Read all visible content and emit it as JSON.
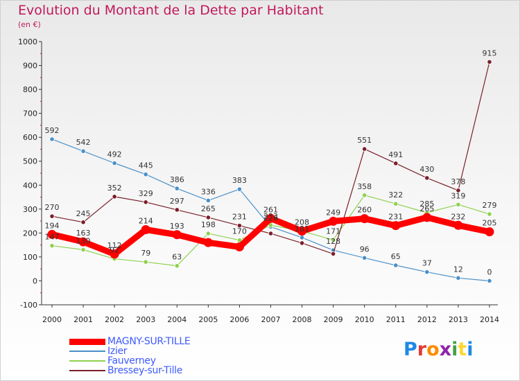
{
  "title": "Evolution du Montant de la Dette par Habitant",
  "unit": "(en €)",
  "logo": {
    "text": "Proxiti",
    "colors": [
      "#1e88e5",
      "#e53935",
      "#fb8c00",
      "#8e24aa",
      "#43a047",
      "#fdd835",
      "#1e88e5"
    ]
  },
  "chart_data": {
    "type": "line",
    "x": [
      "2000",
      "2001",
      "2002",
      "2003",
      "2004",
      "2005",
      "2006",
      "2007",
      "2008",
      "2009",
      "2010",
      "2011",
      "2012",
      "2013",
      "2014"
    ],
    "ylim": [
      -100,
      1000
    ],
    "yticks": [
      "-100",
      "0",
      "100",
      "200",
      "300",
      "400",
      "500",
      "600",
      "700",
      "800",
      "900",
      "1000"
    ],
    "grid": false,
    "legend_position": "bottom-left",
    "series": [
      {
        "name": "MAGNY-SUR-TILLE",
        "color": "#ff0000",
        "width": 9,
        "values": [
          194,
          163,
          112,
          214,
          193,
          160,
          142,
          261,
          208,
          249,
          260,
          231,
          265,
          232,
          205
        ],
        "labels": [
          "194",
          "163",
          "112",
          "214",
          "193",
          "",
          "",
          "261",
          "208",
          "249",
          "260",
          "231",
          "265",
          "232",
          "205"
        ]
      },
      {
        "name": "Izier",
        "color": "#4a90c8",
        "width": 1.2,
        "values": [
          592,
          542,
          492,
          445,
          386,
          336,
          383,
          226,
          181,
          128,
          96,
          65,
          37,
          12,
          0
        ],
        "labels": [
          "592",
          "542",
          "492",
          "445",
          "386",
          "336",
          "383",
          "226",
          "181",
          "128",
          "96",
          "65",
          "37",
          "12",
          "0"
        ]
      },
      {
        "name": "Fauverney",
        "color": "#8fd14f",
        "width": 1.2,
        "values": [
          147,
          130,
          92,
          79,
          63,
          198,
          170,
          233,
          208,
          171,
          358,
          322,
          285,
          319,
          279
        ],
        "labels": [
          "147",
          "130",
          "92",
          "79",
          "63",
          "198",
          "170",
          "233",
          "",
          "171",
          "358",
          "322",
          "285",
          "319",
          "279"
        ]
      },
      {
        "name": "Bressey-sur-Tille",
        "color": "#7b1f2b",
        "width": 1.2,
        "values": [
          270,
          245,
          352,
          329,
          297,
          265,
          231,
          198,
          158,
          113,
          551,
          491,
          430,
          378,
          915
        ],
        "labels": [
          "270",
          "245",
          "352",
          "329",
          "297",
          "265",
          "231",
          "",
          "",
          "",
          "551",
          "491",
          "430",
          "378",
          "915"
        ]
      }
    ]
  }
}
